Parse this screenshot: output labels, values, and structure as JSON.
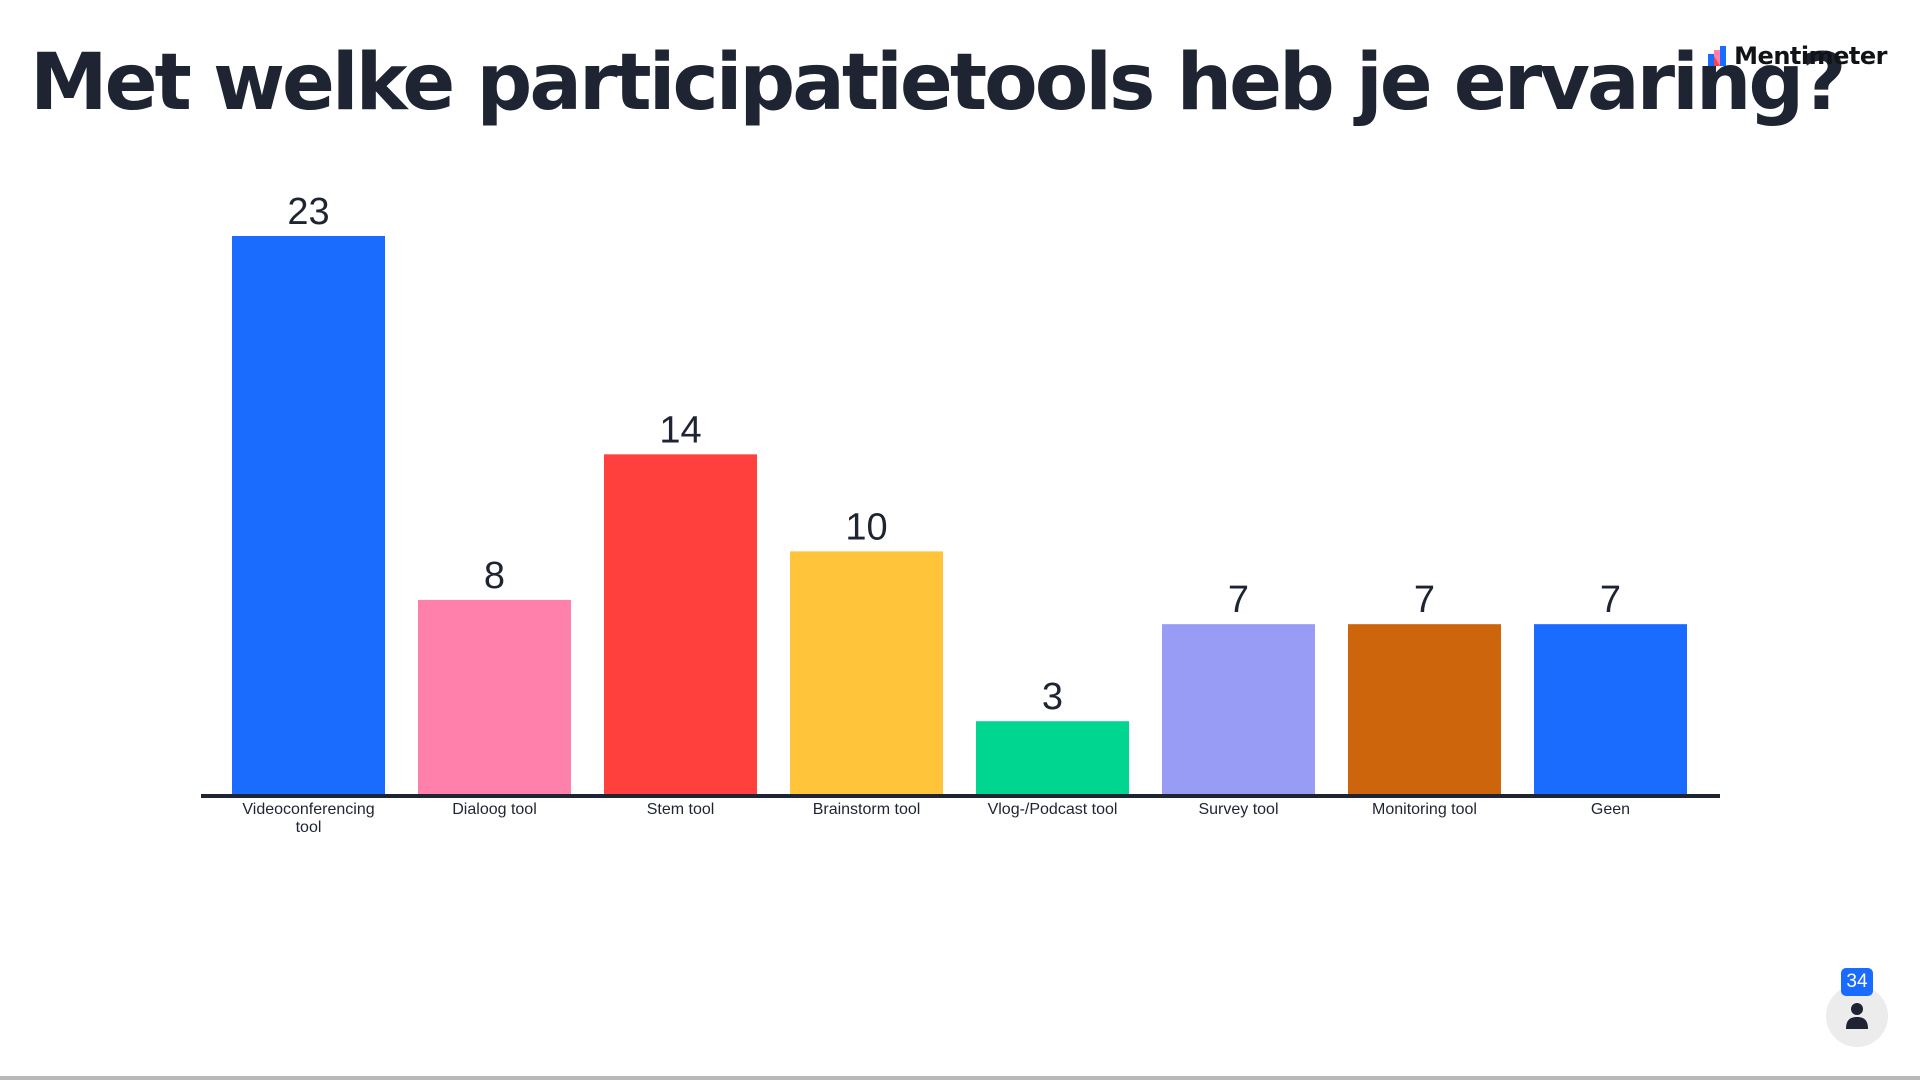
{
  "title": "Met welke participatietools heb je ervaring?",
  "brand": {
    "name": "Mentimeter",
    "logo_icon": "mentimeter-logo-icon",
    "logo_colors": [
      "#196cff",
      "#ff80ab",
      "#ff403d"
    ]
  },
  "participants": {
    "count": "34",
    "icon": "person-icon",
    "badge_color": "#196cff"
  },
  "chart_data": {
    "type": "bar",
    "categories": [
      "Videoconferencing tool",
      "Dialoog tool",
      "Stem tool",
      "Brainstorm tool",
      "Vlog-/Podcast tool",
      "Survey tool",
      "Monitoring tool",
      "Geen"
    ],
    "values": [
      23,
      8,
      14,
      10,
      3,
      7,
      7,
      7
    ],
    "colors": [
      "#196cff",
      "#ff80ab",
      "#ff403d",
      "#ffc43a",
      "#00d68f",
      "#989cf5",
      "#cc650b",
      "#196cff"
    ],
    "title": "Met welke participatietools heb je ervaring?",
    "xlabel": "",
    "ylabel": "",
    "ylim": [
      0,
      23
    ],
    "grid": false,
    "legend": "none",
    "data_labels": true
  }
}
